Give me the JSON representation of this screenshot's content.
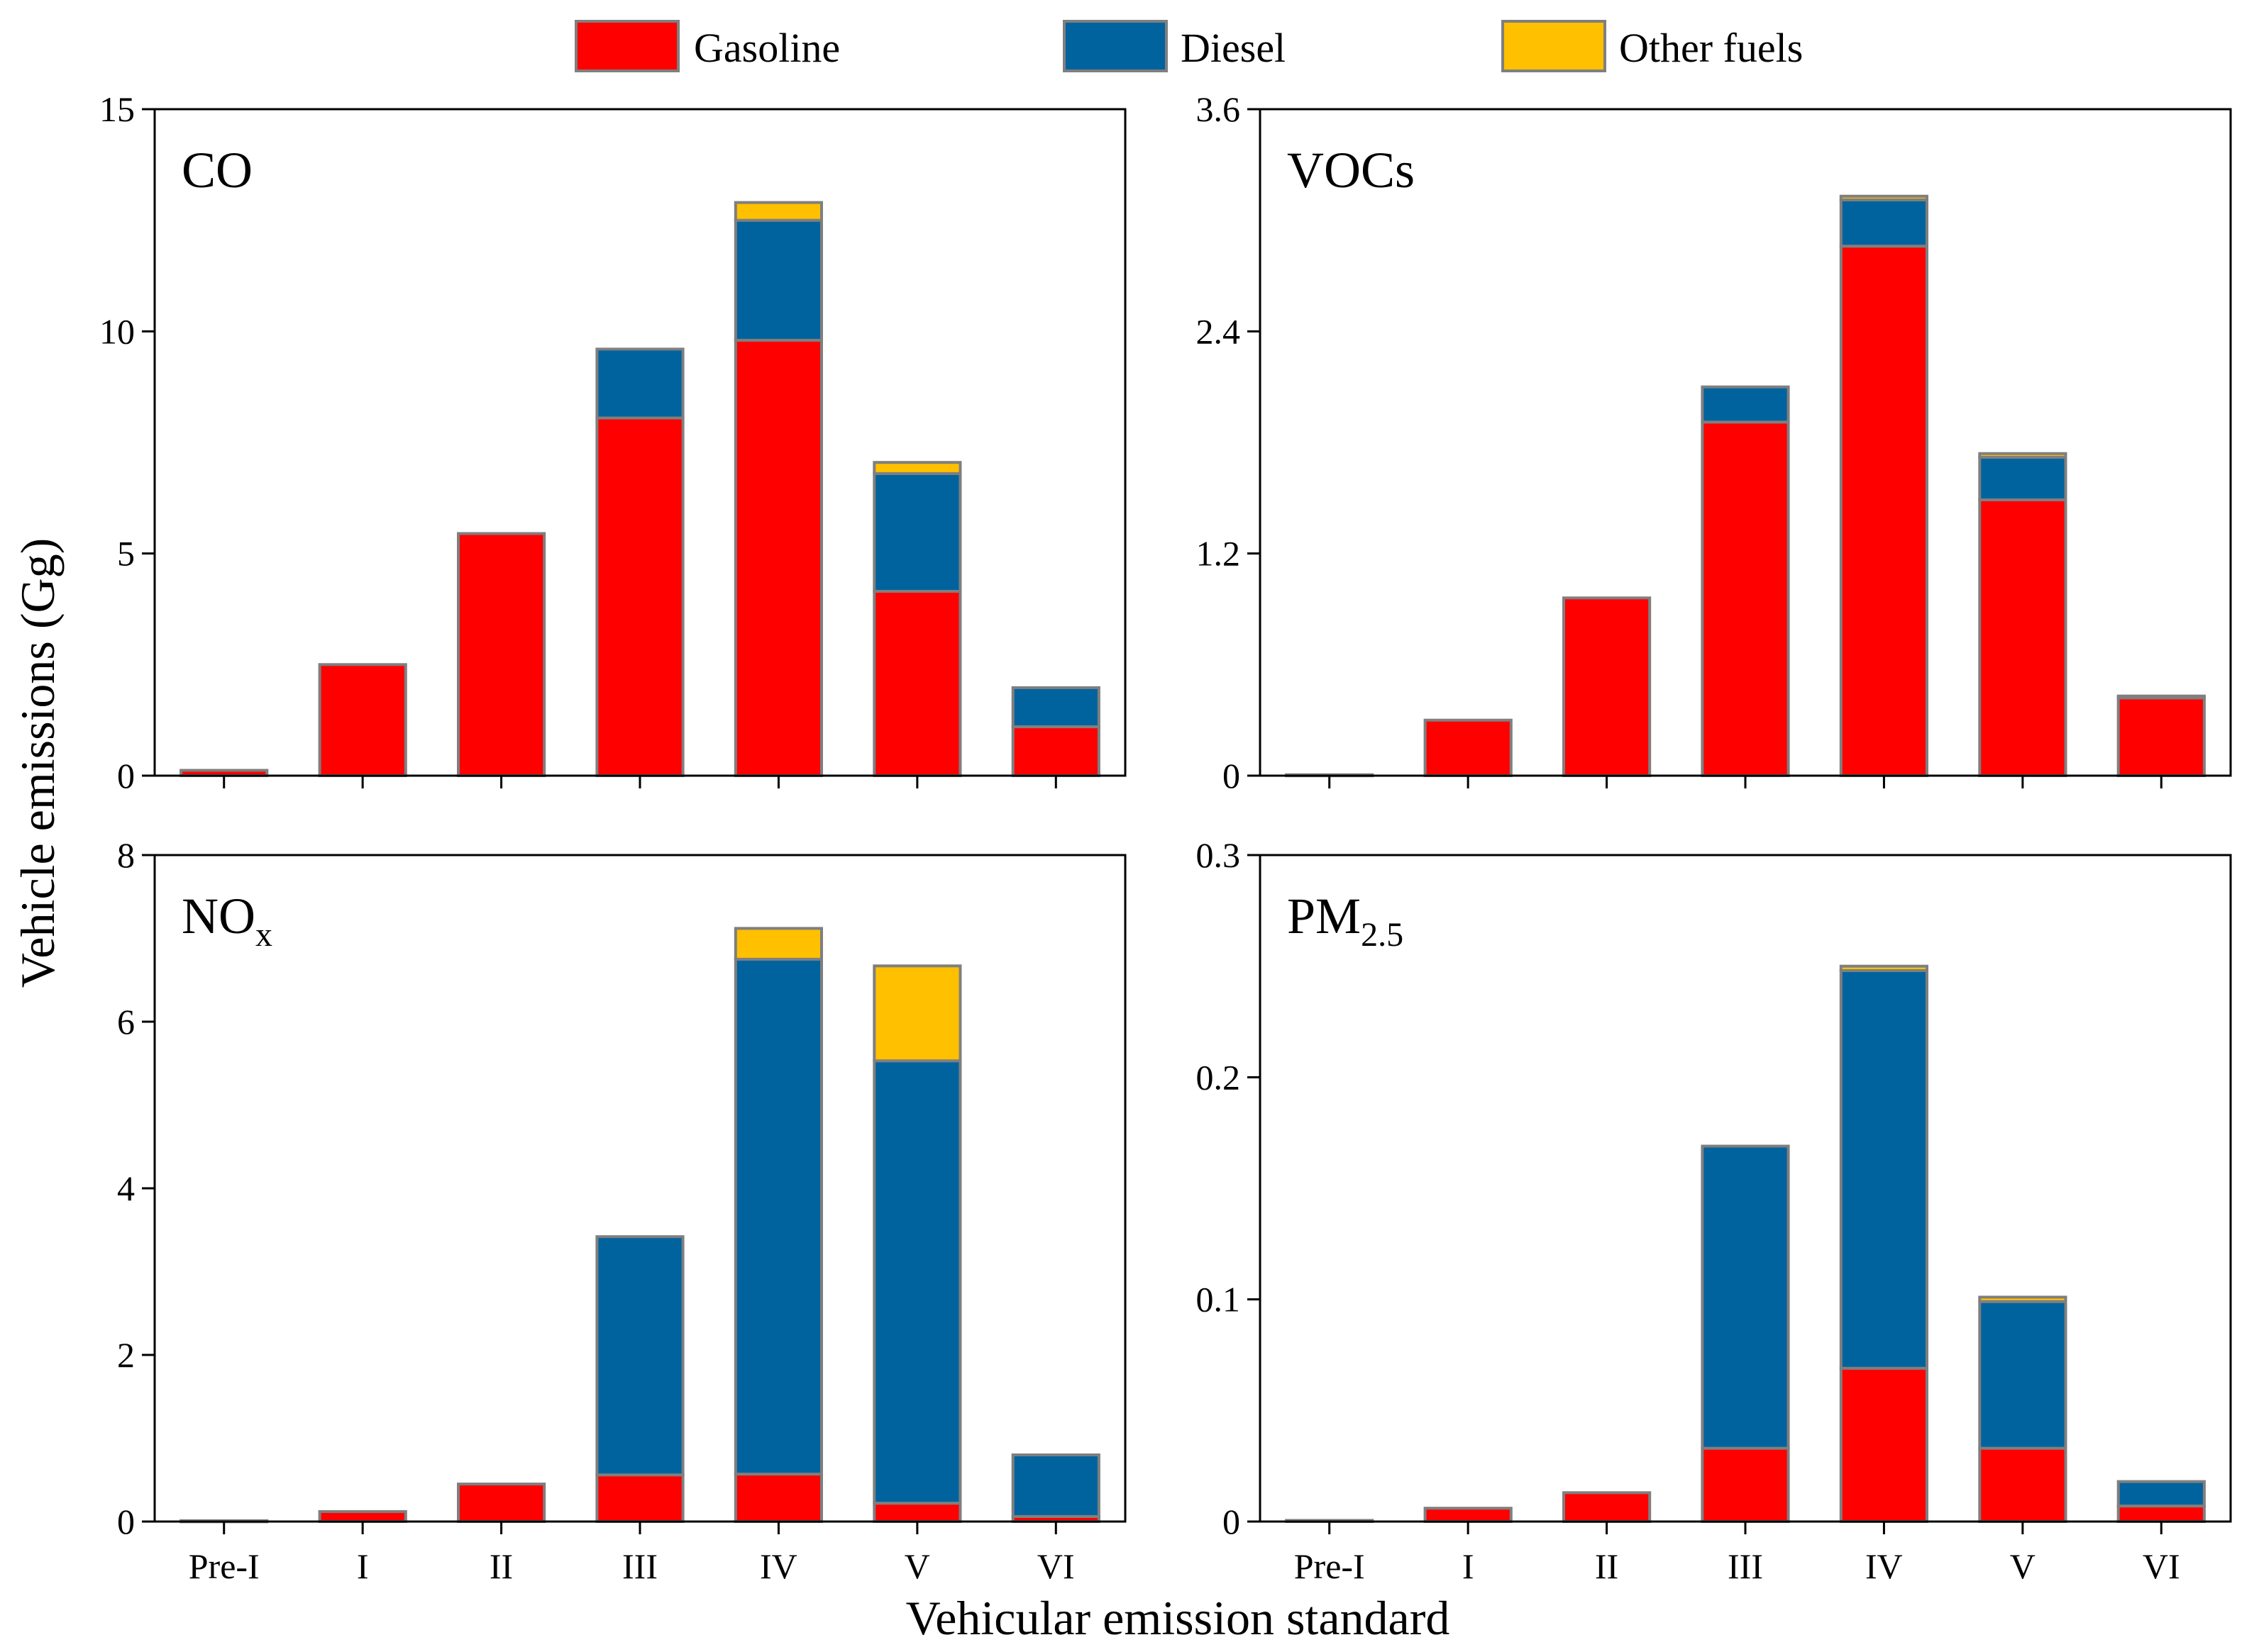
{
  "legend": [
    {
      "label": "Gasoline",
      "color": "#FF0000"
    },
    {
      "label": "Diesel",
      "color": "#00639E"
    },
    {
      "label": "Other fuels",
      "color": "#FFC000"
    }
  ],
  "ylabel": "Vehicle emissions (Gg)",
  "xlabel": "Vehicular emission standard",
  "edge_color": "#7F7F7F",
  "chart_data": [
    {
      "type": "bar",
      "stacked": true,
      "title": "CO",
      "categories": [
        "Pre-I",
        "I",
        "II",
        "III",
        "IV",
        "V",
        "VI"
      ],
      "ylim": [
        0,
        15
      ],
      "yticks": [
        "0",
        "5",
        "10",
        "15"
      ],
      "ytick_values": [
        0,
        5,
        10,
        15
      ],
      "series": [
        {
          "name": "Gasoline",
          "values": [
            0.12,
            2.5,
            5.45,
            8.05,
            9.8,
            4.15,
            1.1
          ]
        },
        {
          "name": "Diesel",
          "values": [
            0,
            0,
            0,
            1.55,
            2.7,
            2.65,
            0.88
          ]
        },
        {
          "name": "Other fuels",
          "values": [
            0,
            0,
            0,
            0,
            0.4,
            0.25,
            0
          ]
        }
      ]
    },
    {
      "type": "bar",
      "stacked": true,
      "title": "VOCs",
      "categories": [
        "Pre-I",
        "I",
        "II",
        "III",
        "IV",
        "V",
        "VI"
      ],
      "ylim": [
        0,
        3.6
      ],
      "yticks": [
        "0",
        "1.2",
        "2.4",
        "3.6"
      ],
      "ytick_values": [
        0,
        1.2,
        2.4,
        3.6
      ],
      "series": [
        {
          "name": "Gasoline",
          "values": [
            0.005,
            0.3,
            0.96,
            1.91,
            2.86,
            1.49,
            0.42
          ]
        },
        {
          "name": "Diesel",
          "values": [
            0,
            0,
            0,
            0.19,
            0.25,
            0.23,
            0.01
          ]
        },
        {
          "name": "Other fuels",
          "values": [
            0,
            0,
            0,
            0,
            0.02,
            0.02,
            0
          ]
        }
      ]
    },
    {
      "type": "bar",
      "stacked": true,
      "title": "NOx",
      "title_sub": "x",
      "categories": [
        "Pre-I",
        "I",
        "II",
        "III",
        "IV",
        "V",
        "VI"
      ],
      "ylim": [
        0,
        8
      ],
      "yticks": [
        "0",
        "2",
        "4",
        "6",
        "8"
      ],
      "ytick_values": [
        0,
        2,
        4,
        6,
        8
      ],
      "series": [
        {
          "name": "Gasoline",
          "values": [
            0.01,
            0.12,
            0.45,
            0.56,
            0.57,
            0.22,
            0.06
          ]
        },
        {
          "name": "Diesel",
          "values": [
            0,
            0,
            0,
            2.86,
            6.18,
            5.31,
            0.74
          ]
        },
        {
          "name": "Other fuels",
          "values": [
            0,
            0,
            0,
            0,
            0.37,
            1.14,
            0
          ]
        }
      ]
    },
    {
      "type": "bar",
      "stacked": true,
      "title": "PM2.5",
      "title_sub": "2.5",
      "categories": [
        "Pre-I",
        "I",
        "II",
        "III",
        "IV",
        "V",
        "VI"
      ],
      "ylim": [
        0,
        0.3
      ],
      "yticks": [
        "0",
        "0.1",
        "0.2",
        "0.3"
      ],
      "ytick_values": [
        0,
        0.1,
        0.2,
        0.3
      ],
      "series": [
        {
          "name": "Gasoline",
          "values": [
            0.0005,
            0.006,
            0.013,
            0.033,
            0.069,
            0.033,
            0.007
          ]
        },
        {
          "name": "Diesel",
          "values": [
            0,
            0,
            0,
            0.136,
            0.179,
            0.066,
            0.011
          ]
        },
        {
          "name": "Other fuels",
          "values": [
            0,
            0,
            0,
            0,
            0.002,
            0.002,
            0
          ]
        }
      ]
    }
  ]
}
